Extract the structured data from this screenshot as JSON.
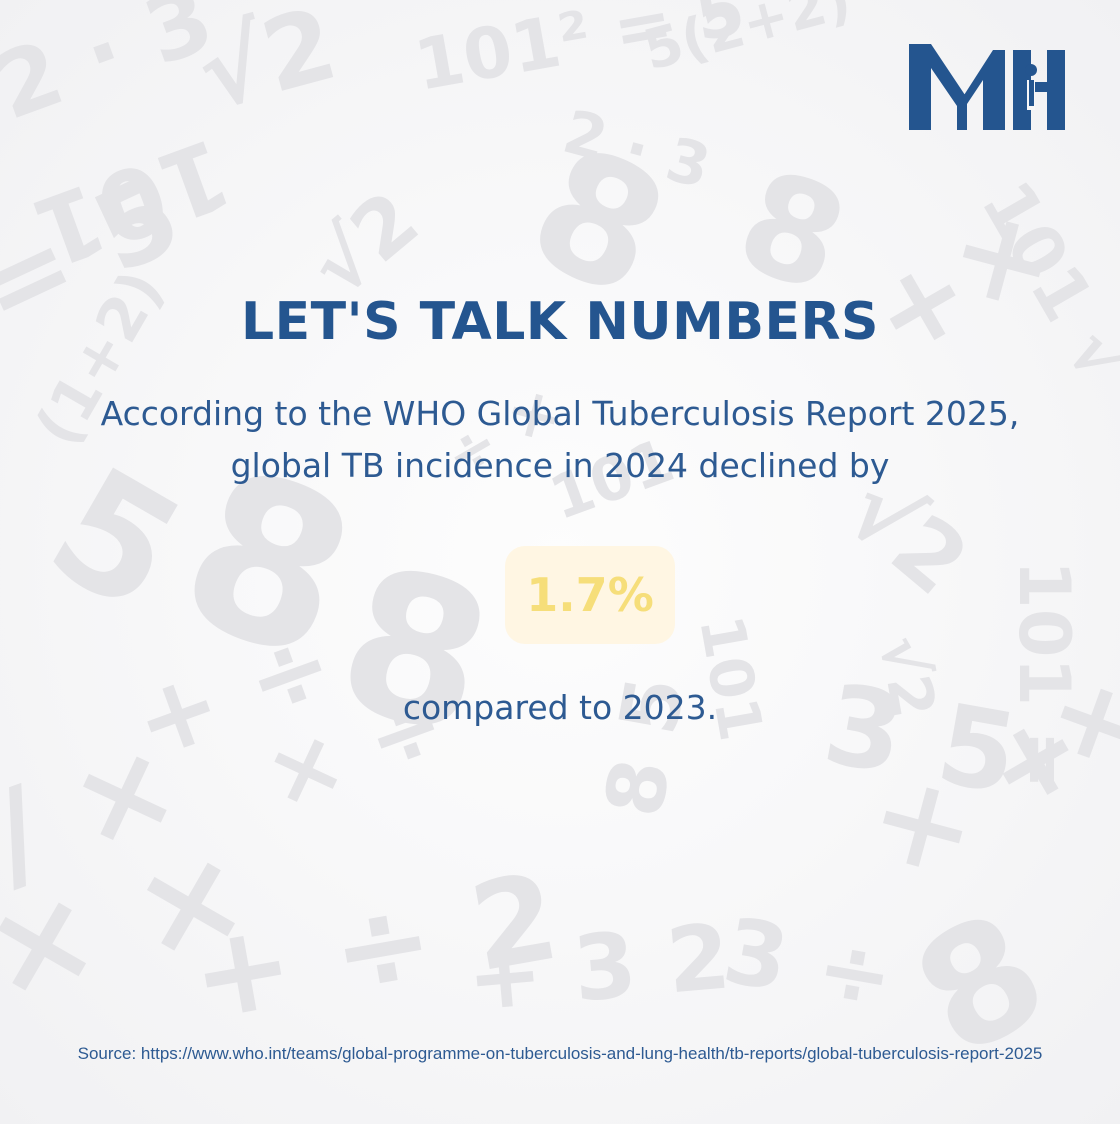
{
  "brand": {
    "logo_text": "MH",
    "color": "#24558f"
  },
  "headline": "LET'S TALK NUMBERS",
  "intro": "According to the WHO Global Tuberculosis Report 2025, global TB incidence in 2024 declined by",
  "stat": {
    "value": "1.7%",
    "color": "#f6de7a",
    "box_color": "#fff5de"
  },
  "comparison": "compared to 2023.",
  "source": "Source: https://www.who.int/teams/global-programme-on-tuberculosis-and-lung-health/tb-reports/global-tuberculosis-report-2025",
  "colors": {
    "text_primary": "#24558f",
    "background": "#f7f7f8",
    "pattern": "#e3e3e6"
  }
}
